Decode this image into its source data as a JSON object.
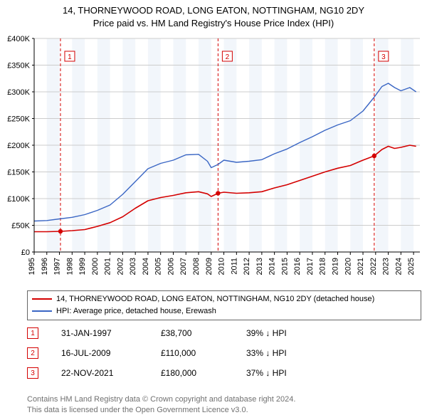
{
  "title": {
    "line1": "14, THORNEYWOOD ROAD, LONG EATON, NOTTINGHAM, NG10 2DY",
    "line2": "Price paid vs. HM Land Registry's House Price Index (HPI)",
    "fontsize": 13,
    "color": "#000000"
  },
  "chart": {
    "type": "line",
    "plot_bg": "#ffffff",
    "band_bg": "#f2f6fb",
    "grid_color": "#cccccc",
    "axis_color": "#000000",
    "tick_fontsize": 11,
    "tick_color": "#000000",
    "x": {
      "min": 1995,
      "max": 2025.5,
      "ticks": [
        1995,
        1996,
        1997,
        1998,
        1999,
        2000,
        2001,
        2002,
        2003,
        2004,
        2005,
        2006,
        2007,
        2008,
        2009,
        2010,
        2011,
        2012,
        2013,
        2014,
        2015,
        2016,
        2017,
        2018,
        2019,
        2020,
        2021,
        2022,
        2023,
        2024,
        2025
      ],
      "label_rotation": -90
    },
    "y": {
      "min": 0,
      "max": 400000,
      "ticks": [
        0,
        50000,
        100000,
        150000,
        200000,
        250000,
        300000,
        350000,
        400000
      ],
      "tick_labels": [
        "£0",
        "£50K",
        "£100K",
        "£150K",
        "£200K",
        "£250K",
        "£300K",
        "£350K",
        "£400K"
      ]
    },
    "series": [
      {
        "id": "property",
        "label": "14, THORNEYWOOD ROAD, LONG EATON, NOTTINGHAM, NG10 2DY (detached house)",
        "color": "#d40000",
        "width": 1.6,
        "points": [
          [
            1995.0,
            38000
          ],
          [
            1996.0,
            38000
          ],
          [
            1997.08,
            38700
          ],
          [
            1998.0,
            40000
          ],
          [
            1999.0,
            42000
          ],
          [
            2000.0,
            48000
          ],
          [
            2001.0,
            55000
          ],
          [
            2002.0,
            66000
          ],
          [
            2003.0,
            82000
          ],
          [
            2004.0,
            96000
          ],
          [
            2005.0,
            102000
          ],
          [
            2006.0,
            106000
          ],
          [
            2007.0,
            111000
          ],
          [
            2008.0,
            113000
          ],
          [
            2008.7,
            109000
          ],
          [
            2009.0,
            104000
          ],
          [
            2009.54,
            110000
          ],
          [
            2010.0,
            112000
          ],
          [
            2011.0,
            110000
          ],
          [
            2012.0,
            111000
          ],
          [
            2013.0,
            113000
          ],
          [
            2014.0,
            120000
          ],
          [
            2015.0,
            126000
          ],
          [
            2016.0,
            134000
          ],
          [
            2017.0,
            142000
          ],
          [
            2018.0,
            150000
          ],
          [
            2019.0,
            157000
          ],
          [
            2020.0,
            162000
          ],
          [
            2021.0,
            172000
          ],
          [
            2021.89,
            180000
          ],
          [
            2022.5,
            192000
          ],
          [
            2023.0,
            198000
          ],
          [
            2023.5,
            194000
          ],
          [
            2024.0,
            196000
          ],
          [
            2024.7,
            200000
          ],
          [
            2025.2,
            198000
          ]
        ]
      },
      {
        "id": "hpi",
        "label": "HPI: Average price, detached house, Erewash",
        "color": "#3a66c4",
        "width": 1.4,
        "points": [
          [
            1995.0,
            58000
          ],
          [
            1996.0,
            59000
          ],
          [
            1997.0,
            62000
          ],
          [
            1998.0,
            65000
          ],
          [
            1999.0,
            70000
          ],
          [
            2000.0,
            78000
          ],
          [
            2001.0,
            88000
          ],
          [
            2002.0,
            108000
          ],
          [
            2003.0,
            132000
          ],
          [
            2004.0,
            156000
          ],
          [
            2005.0,
            166000
          ],
          [
            2006.0,
            172000
          ],
          [
            2007.0,
            182000
          ],
          [
            2008.0,
            183000
          ],
          [
            2008.7,
            170000
          ],
          [
            2009.0,
            158000
          ],
          [
            2009.54,
            164000
          ],
          [
            2010.0,
            172000
          ],
          [
            2011.0,
            168000
          ],
          [
            2012.0,
            170000
          ],
          [
            2013.0,
            173000
          ],
          [
            2014.0,
            184000
          ],
          [
            2015.0,
            193000
          ],
          [
            2016.0,
            205000
          ],
          [
            2017.0,
            216000
          ],
          [
            2018.0,
            228000
          ],
          [
            2019.0,
            238000
          ],
          [
            2020.0,
            246000
          ],
          [
            2021.0,
            264000
          ],
          [
            2021.89,
            290000
          ],
          [
            2022.5,
            310000
          ],
          [
            2023.0,
            316000
          ],
          [
            2023.5,
            308000
          ],
          [
            2024.0,
            302000
          ],
          [
            2024.7,
            308000
          ],
          [
            2025.2,
            300000
          ]
        ]
      }
    ],
    "markers": [
      {
        "n": "1",
        "x": 1997.08,
        "y_dot": 38700,
        "date": "31-JAN-1997",
        "price": "£38,700",
        "hpi": "39% ↓ HPI",
        "color": "#d40000"
      },
      {
        "n": "2",
        "x": 2009.54,
        "y_dot": 110000,
        "date": "16-JUL-2009",
        "price": "£110,000",
        "hpi": "33% ↓ HPI",
        "color": "#d40000"
      },
      {
        "n": "3",
        "x": 2021.89,
        "y_dot": 180000,
        "date": "22-NOV-2021",
        "price": "£180,000",
        "hpi": "37% ↓ HPI",
        "color": "#d40000"
      }
    ]
  },
  "legend": {
    "border": "#666666",
    "fontsize": 11
  },
  "footer": {
    "line1": "Contains HM Land Registry data © Crown copyright and database right 2024.",
    "line2": "This data is licensed under the Open Government Licence v3.0.",
    "color": "#707070",
    "fontsize": 11
  }
}
